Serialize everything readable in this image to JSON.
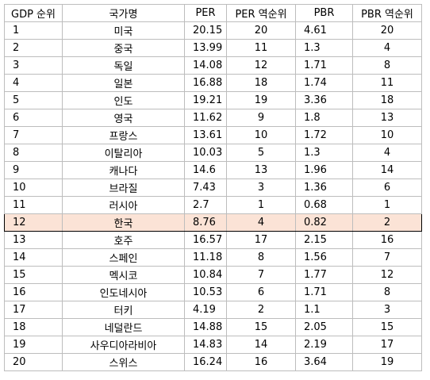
{
  "table": {
    "headers": [
      "GDP 순위",
      "국가명",
      "PER",
      "PER 역순위",
      "PBR",
      "PBR 역순위"
    ],
    "rows": [
      {
        "rank": "1",
        "country": "미국",
        "per": "20.15",
        "per_rank": "20",
        "pbr": "4.61",
        "pbr_rank": "20"
      },
      {
        "rank": "2",
        "country": "중국",
        "per": "13.99",
        "per_rank": "11",
        "pbr": "1.3",
        "pbr_rank": "4"
      },
      {
        "rank": "3",
        "country": "독일",
        "per": "14.08",
        "per_rank": "12",
        "pbr": "1.71",
        "pbr_rank": "8"
      },
      {
        "rank": "4",
        "country": "일본",
        "per": "16.88",
        "per_rank": "18",
        "pbr": "1.74",
        "pbr_rank": "11"
      },
      {
        "rank": "5",
        "country": "인도",
        "per": "19.21",
        "per_rank": "19",
        "pbr": "3.36",
        "pbr_rank": "18"
      },
      {
        "rank": "6",
        "country": "영국",
        "per": "11.62",
        "per_rank": "9",
        "pbr": "1.8",
        "pbr_rank": "13"
      },
      {
        "rank": "7",
        "country": "프랑스",
        "per": "13.61",
        "per_rank": "10",
        "pbr": "1.72",
        "pbr_rank": "10"
      },
      {
        "rank": "8",
        "country": "이탈리아",
        "per": "10.03",
        "per_rank": "5",
        "pbr": "1.3",
        "pbr_rank": "4"
      },
      {
        "rank": "9",
        "country": "캐나다",
        "per": "14.6",
        "per_rank": "13",
        "pbr": "1.96",
        "pbr_rank": "14"
      },
      {
        "rank": "10",
        "country": "브라질",
        "per": "7.43",
        "per_rank": "3",
        "pbr": "1.36",
        "pbr_rank": "6"
      },
      {
        "rank": "11",
        "country": "러시아",
        "per": "2.7",
        "per_rank": "1",
        "pbr": "0.68",
        "pbr_rank": "1"
      },
      {
        "rank": "12",
        "country": "한국",
        "per": "8.76",
        "per_rank": "4",
        "pbr": "0.82",
        "pbr_rank": "2",
        "highlight": true
      },
      {
        "rank": "13",
        "country": "호주",
        "per": "16.57",
        "per_rank": "17",
        "pbr": "2.15",
        "pbr_rank": "16"
      },
      {
        "rank": "14",
        "country": "스페인",
        "per": "11.18",
        "per_rank": "8",
        "pbr": "1.56",
        "pbr_rank": "7"
      },
      {
        "rank": "15",
        "country": "멕시코",
        "per": "10.84",
        "per_rank": "7",
        "pbr": "1.77",
        "pbr_rank": "12"
      },
      {
        "rank": "16",
        "country": "인도네시아",
        "per": "10.53",
        "per_rank": "6",
        "pbr": "1.71",
        "pbr_rank": "8"
      },
      {
        "rank": "17",
        "country": "터키",
        "per": "4.19",
        "per_rank": "2",
        "pbr": "1.1",
        "pbr_rank": "3"
      },
      {
        "rank": "18",
        "country": "네덜란드",
        "per": "14.88",
        "per_rank": "15",
        "pbr": "2.05",
        "pbr_rank": "15"
      },
      {
        "rank": "19",
        "country": "사우디아라비아",
        "per": "14.83",
        "per_rank": "14",
        "pbr": "2.19",
        "pbr_rank": "17"
      },
      {
        "rank": "20",
        "country": "스위스",
        "per": "16.24",
        "per_rank": "16",
        "pbr": "3.64",
        "pbr_rank": "19"
      }
    ]
  },
  "colors": {
    "highlight_row": "#fbe3d6",
    "grid": "#bdbdbd"
  }
}
